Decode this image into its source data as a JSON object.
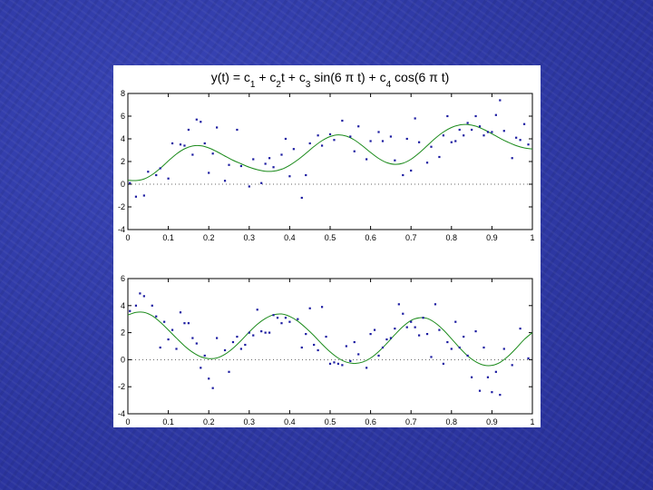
{
  "slide": {
    "background_color": "#2f3aa8"
  },
  "chart_data": [
    {
      "type": "scatter",
      "title": "y(t) = c1 + c2t + c3 sin(6 π t) + c4 cos(6 π t)",
      "title_parts": [
        {
          "text": "y(t) = c",
          "sub": false
        },
        {
          "text": "1",
          "sub": true
        },
        {
          "text": " + c",
          "sub": false
        },
        {
          "text": "2",
          "sub": true
        },
        {
          "text": "t + c",
          "sub": false
        },
        {
          "text": "3",
          "sub": true
        },
        {
          "text": " sin(6 π t) + c",
          "sub": false
        },
        {
          "text": "4",
          "sub": true
        },
        {
          "text": " cos(6 π t)",
          "sub": false
        }
      ],
      "xlim": [
        0,
        1
      ],
      "ylim": [
        -4,
        8
      ],
      "xticks": [
        "0",
        "0.1",
        "0.2",
        "0.3",
        "0.4",
        "0.5",
        "0.6",
        "0.7",
        "0.8",
        "0.9",
        "1"
      ],
      "yticks": [
        "-4",
        "-2",
        "0",
        "2",
        "4",
        "6",
        "8"
      ],
      "zero_line": true,
      "grid": false,
      "fit_curve": {
        "type": "line",
        "color": "#1a8a1a",
        "x": [
          0,
          0.02,
          0.04,
          0.06,
          0.08,
          0.1,
          0.12,
          0.14,
          0.16,
          0.18,
          0.2,
          0.22,
          0.24,
          0.26,
          0.28,
          0.3,
          0.32,
          0.34,
          0.36,
          0.38,
          0.4,
          0.42,
          0.44,
          0.46,
          0.48,
          0.5,
          0.52,
          0.54,
          0.56,
          0.58,
          0.6,
          0.62,
          0.64,
          0.66,
          0.68,
          0.7,
          0.72,
          0.74,
          0.76,
          0.78,
          0.8,
          0.82,
          0.84,
          0.86,
          0.88,
          0.9,
          0.92,
          0.94,
          0.96,
          0.98,
          1
        ],
        "y": [
          0.35,
          0.32,
          0.46,
          0.84,
          1.4,
          2.05,
          2.66,
          3.12,
          3.37,
          3.39,
          3.2,
          2.87,
          2.48,
          2.11,
          1.8,
          1.5,
          1.28,
          1.14,
          1.15,
          1.32,
          1.67,
          2.15,
          2.72,
          3.32,
          3.84,
          4.2,
          4.35,
          4.24,
          3.9,
          3.38,
          2.8,
          2.27,
          1.9,
          1.75,
          1.85,
          2.2,
          2.75,
          3.4,
          4.05,
          4.6,
          5.0,
          5.22,
          5.26,
          5.12,
          4.82,
          4.45,
          4.05,
          3.7,
          3.4,
          3.2,
          3.1
        ]
      },
      "points": {
        "color": "#1a1aa0",
        "x": [
          0.005,
          0.02,
          0.04,
          0.05,
          0.07,
          0.08,
          0.1,
          0.11,
          0.13,
          0.14,
          0.15,
          0.16,
          0.17,
          0.18,
          0.19,
          0.2,
          0.21,
          0.22,
          0.24,
          0.25,
          0.27,
          0.28,
          0.3,
          0.31,
          0.33,
          0.34,
          0.35,
          0.36,
          0.38,
          0.39,
          0.4,
          0.41,
          0.43,
          0.44,
          0.45,
          0.47,
          0.48,
          0.5,
          0.51,
          0.53,
          0.55,
          0.56,
          0.57,
          0.59,
          0.6,
          0.62,
          0.63,
          0.65,
          0.66,
          0.68,
          0.69,
          0.7,
          0.71,
          0.72,
          0.74,
          0.75,
          0.77,
          0.78,
          0.79,
          0.8,
          0.81,
          0.82,
          0.83,
          0.84,
          0.85,
          0.86,
          0.87,
          0.88,
          0.89,
          0.9,
          0.91,
          0.92,
          0.93,
          0.95,
          0.96,
          0.97,
          0.98,
          0.99
        ],
        "y": [
          0.1,
          -1.1,
          -1.0,
          1.1,
          0.8,
          1.4,
          0.5,
          3.6,
          3.5,
          3.4,
          4.8,
          2.6,
          5.7,
          5.5,
          3.6,
          1.0,
          2.7,
          5.0,
          0.3,
          1.7,
          4.8,
          1.6,
          -0.2,
          2.2,
          0.1,
          1.8,
          2.3,
          1.5,
          2.6,
          4.0,
          0.7,
          3.1,
          -1.2,
          0.8,
          3.6,
          4.3,
          3.4,
          4.4,
          3.9,
          5.6,
          4.2,
          2.9,
          5.1,
          2.2,
          3.8,
          4.6,
          3.8,
          4.2,
          2.1,
          0.8,
          4.0,
          1.2,
          5.8,
          3.7,
          1.9,
          3.3,
          2.4,
          4.3,
          6.0,
          3.7,
          3.8,
          4.8,
          4.3,
          5.4,
          4.8,
          6.0,
          5.1,
          4.3,
          4.6,
          4.6,
          6.1,
          7.4,
          4.7,
          2.3,
          4.1,
          3.9,
          5.3,
          3.5
        ]
      }
    },
    {
      "type": "scatter",
      "title": "",
      "xlim": [
        0,
        1
      ],
      "ylim": [
        -4,
        6
      ],
      "xticks": [
        "0",
        "0.1",
        "0.2",
        "0.3",
        "0.4",
        "0.5",
        "0.6",
        "0.7",
        "0.8",
        "0.9",
        "1"
      ],
      "yticks": [
        "-4",
        "-2",
        "0",
        "2",
        "4",
        "6"
      ],
      "zero_line": true,
      "grid": false,
      "fit_curve": {
        "type": "line",
        "color": "#1a8a1a",
        "x": [
          0,
          0.02,
          0.04,
          0.06,
          0.08,
          0.1,
          0.12,
          0.14,
          0.16,
          0.18,
          0.2,
          0.22,
          0.24,
          0.26,
          0.28,
          0.3,
          0.32,
          0.34,
          0.36,
          0.38,
          0.4,
          0.42,
          0.44,
          0.46,
          0.48,
          0.5,
          0.52,
          0.54,
          0.56,
          0.58,
          0.6,
          0.62,
          0.64,
          0.66,
          0.68,
          0.7,
          0.72,
          0.74,
          0.76,
          0.78,
          0.8,
          0.82,
          0.84,
          0.86,
          0.88,
          0.9,
          0.92,
          0.94,
          0.96,
          0.98,
          1
        ],
        "y": [
          3.3,
          3.5,
          3.5,
          3.25,
          2.78,
          2.2,
          1.6,
          1.02,
          0.55,
          0.22,
          0.08,
          0.13,
          0.4,
          0.85,
          1.42,
          2.05,
          2.62,
          3.05,
          3.32,
          3.38,
          3.2,
          2.85,
          2.35,
          1.78,
          1.15,
          0.58,
          0.12,
          -0.18,
          -0.28,
          -0.18,
          0.12,
          0.6,
          1.2,
          1.85,
          2.45,
          2.9,
          3.1,
          3.05,
          2.72,
          2.2,
          1.55,
          0.88,
          0.28,
          -0.15,
          -0.4,
          -0.42,
          -0.2,
          0.25,
          0.85,
          1.5,
          2.0
        ]
      },
      "points": {
        "color": "#1a1aa0",
        "x": [
          0.005,
          0.02,
          0.03,
          0.04,
          0.06,
          0.07,
          0.08,
          0.09,
          0.1,
          0.11,
          0.12,
          0.13,
          0.14,
          0.15,
          0.16,
          0.17,
          0.18,
          0.19,
          0.2,
          0.21,
          0.22,
          0.24,
          0.25,
          0.26,
          0.27,
          0.28,
          0.29,
          0.3,
          0.31,
          0.32,
          0.33,
          0.34,
          0.35,
          0.36,
          0.37,
          0.38,
          0.39,
          0.4,
          0.42,
          0.43,
          0.44,
          0.45,
          0.46,
          0.47,
          0.48,
          0.49,
          0.5,
          0.51,
          0.52,
          0.53,
          0.54,
          0.55,
          0.56,
          0.57,
          0.59,
          0.6,
          0.61,
          0.62,
          0.63,
          0.64,
          0.65,
          0.66,
          0.67,
          0.68,
          0.69,
          0.7,
          0.71,
          0.72,
          0.73,
          0.74,
          0.75,
          0.76,
          0.77,
          0.78,
          0.79,
          0.8,
          0.81,
          0.82,
          0.83,
          0.84,
          0.85,
          0.86,
          0.87,
          0.88,
          0.89,
          0.9,
          0.91,
          0.92,
          0.93,
          0.95,
          0.97,
          0.99
        ],
        "y": [
          3.6,
          4.0,
          4.9,
          4.7,
          4.0,
          3.2,
          0.9,
          2.8,
          1.5,
          2.2,
          0.8,
          3.5,
          2.7,
          2.7,
          1.6,
          1.2,
          -0.6,
          0.3,
          -1.4,
          -2.1,
          1.6,
          0.7,
          -0.9,
          1.3,
          1.7,
          0.8,
          1.1,
          2.0,
          1.8,
          3.7,
          2.1,
          2.0,
          2.0,
          3.3,
          3.1,
          2.7,
          3.1,
          2.8,
          3.0,
          0.9,
          1.9,
          3.8,
          1.1,
          0.7,
          3.9,
          1.7,
          -0.3,
          -0.2,
          -0.3,
          -0.4,
          1.0,
          -0.1,
          1.3,
          0.4,
          -0.6,
          1.9,
          2.2,
          0.3,
          0.9,
          1.5,
          1.6,
          2.3,
          4.1,
          3.4,
          2.4,
          2.8,
          2.4,
          1.8,
          3.1,
          1.9,
          0.2,
          4.1,
          2.2,
          -0.3,
          1.3,
          0.8,
          2.8,
          0.9,
          1.7,
          0.3,
          -1.3,
          2.1,
          -2.3,
          0.9,
          -1.3,
          -2.4,
          -0.9,
          -2.6,
          0.8,
          -0.4,
          2.3,
          0.1
        ]
      }
    }
  ]
}
